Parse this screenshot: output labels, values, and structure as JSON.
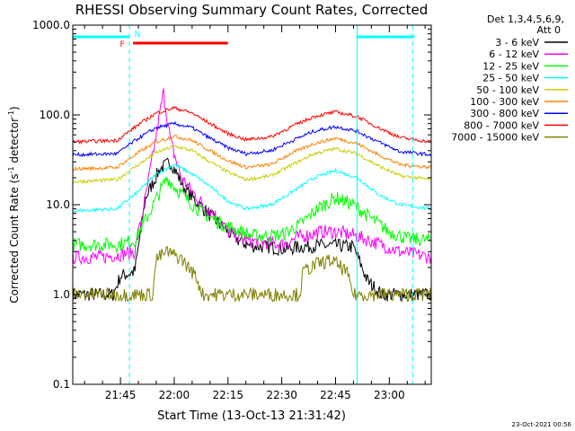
{
  "chart_data": {
    "type": "line",
    "title": "RHESSI Observing Summary Count Rates, Corrected",
    "xlabel": "Start Time (13-Oct-13 21:31:42)",
    "ylabel_main": "Corrected Count Rate (s",
    "ylabel_sup1": "-1",
    "ylabel_mid": " detector",
    "ylabel_sup2": "-1",
    "ylabel_end": ")",
    "yscale": "log",
    "ylim": [
      0.1,
      1000
    ],
    "xlim": [
      "21:31:42",
      "23:11:42"
    ],
    "y_ticks": [
      {
        "value": 0.1,
        "label": "0.1"
      },
      {
        "value": 1,
        "label": "1.0"
      },
      {
        "value": 10,
        "label": "10.0"
      },
      {
        "value": 100,
        "label": "100.0"
      },
      {
        "value": 1000,
        "label": "1000.0"
      }
    ],
    "x_ticks": [
      {
        "value": "21:45",
        "label": "21:45"
      },
      {
        "value": "22:00",
        "label": "22:00"
      },
      {
        "value": "22:15",
        "label": "22:15"
      },
      {
        "value": "22:30",
        "label": "22:30"
      },
      {
        "value": "22:45",
        "label": "22:45"
      },
      {
        "value": "23:00",
        "label": "23:00"
      }
    ],
    "legend_header_1": "Det 1,3,4,5,6,9,",
    "legend_header_2": "Att 0",
    "legend_position": "right",
    "series": [
      {
        "name": "3 - 6 keV",
        "color": "#000000",
        "values": [
          {
            "t": "21:31:42",
            "y": 1.0
          },
          {
            "t": "21:43",
            "y": 1.0
          },
          {
            "t": "21:45",
            "y": 1.6
          },
          {
            "t": "21:49",
            "y": 1.8
          },
          {
            "t": "21:52",
            "y": 12
          },
          {
            "t": "21:56",
            "y": 25
          },
          {
            "t": "21:59",
            "y": 30
          },
          {
            "t": "22:03",
            "y": 15
          },
          {
            "t": "22:07",
            "y": 10
          },
          {
            "t": "22:11",
            "y": 7
          },
          {
            "t": "22:15",
            "y": 5
          },
          {
            "t": "22:18",
            "y": 4
          },
          {
            "t": "22:21",
            "y": 3.5
          },
          {
            "t": "22:26",
            "y": 3.4
          },
          {
            "t": "22:31",
            "y": 3.2
          },
          {
            "t": "22:35",
            "y": 3.4
          },
          {
            "t": "22:40",
            "y": 3.5
          },
          {
            "t": "22:45",
            "y": 3.5
          },
          {
            "t": "22:50",
            "y": 3.4
          },
          {
            "t": "22:54",
            "y": 1.4
          },
          {
            "t": "22:58",
            "y": 1.0
          },
          {
            "t": "23:11:42",
            "y": 1.0
          }
        ]
      },
      {
        "name": "6 - 12 keV",
        "color": "#ff00ff",
        "values": [
          {
            "t": "21:31:42",
            "y": 2.6
          },
          {
            "t": "21:40",
            "y": 2.6
          },
          {
            "t": "21:45",
            "y": 2.8
          },
          {
            "t": "21:49",
            "y": 3.0
          },
          {
            "t": "21:52",
            "y": 12
          },
          {
            "t": "21:55",
            "y": 60
          },
          {
            "t": "21:57",
            "y": 180
          },
          {
            "t": "21:59",
            "y": 50
          },
          {
            "t": "22:02",
            "y": 20
          },
          {
            "t": "22:05",
            "y": 14
          },
          {
            "t": "22:08",
            "y": 10
          },
          {
            "t": "22:11",
            "y": 8
          },
          {
            "t": "22:15",
            "y": 5
          },
          {
            "t": "22:20",
            "y": 4
          },
          {
            "t": "22:30",
            "y": 3.6
          },
          {
            "t": "22:35",
            "y": 4.4
          },
          {
            "t": "22:41",
            "y": 5.0
          },
          {
            "t": "22:45",
            "y": 5.0
          },
          {
            "t": "22:50",
            "y": 4.6
          },
          {
            "t": "22:56",
            "y": 3.8
          },
          {
            "t": "23:03",
            "y": 3.0
          },
          {
            "t": "23:11:42",
            "y": 2.6
          }
        ]
      },
      {
        "name": "12 - 25 keV",
        "color": "#00ff00",
        "values": [
          {
            "t": "21:31:42",
            "y": 3.6
          },
          {
            "t": "21:44",
            "y": 3.6
          },
          {
            "t": "21:49",
            "y": 4.0
          },
          {
            "t": "21:53",
            "y": 8
          },
          {
            "t": "21:56",
            "y": 14
          },
          {
            "t": "21:58",
            "y": 20
          },
          {
            "t": "22:00",
            "y": 16
          },
          {
            "t": "22:04",
            "y": 11
          },
          {
            "t": "22:08",
            "y": 8
          },
          {
            "t": "22:12",
            "y": 6.5
          },
          {
            "t": "22:16",
            "y": 5.5
          },
          {
            "t": "22:22",
            "y": 4.5
          },
          {
            "t": "22:30",
            "y": 4.6
          },
          {
            "t": "22:35",
            "y": 6
          },
          {
            "t": "22:40",
            "y": 9
          },
          {
            "t": "22:45",
            "y": 12
          },
          {
            "t": "22:50",
            "y": 10
          },
          {
            "t": "22:55",
            "y": 7
          },
          {
            "t": "23:00",
            "y": 5
          },
          {
            "t": "23:05",
            "y": 4.2
          },
          {
            "t": "23:11:42",
            "y": 4.0
          }
        ]
      },
      {
        "name": "25 - 50 keV",
        "color": "#00ffff",
        "values": [
          {
            "t": "21:31:42",
            "y": 8.5
          },
          {
            "t": "21:44",
            "y": 9
          },
          {
            "t": "21:50",
            "y": 14
          },
          {
            "t": "21:55",
            "y": 22
          },
          {
            "t": "22:00",
            "y": 28
          },
          {
            "t": "22:05",
            "y": 22
          },
          {
            "t": "22:10",
            "y": 16
          },
          {
            "t": "22:15",
            "y": 11
          },
          {
            "t": "22:20",
            "y": 9
          },
          {
            "t": "22:27",
            "y": 10
          },
          {
            "t": "22:33",
            "y": 14
          },
          {
            "t": "22:39",
            "y": 20
          },
          {
            "t": "22:45",
            "y": 24
          },
          {
            "t": "22:51",
            "y": 20
          },
          {
            "t": "22:57",
            "y": 13
          },
          {
            "t": "23:03",
            "y": 10
          },
          {
            "t": "23:11:42",
            "y": 9
          }
        ]
      },
      {
        "name": "50 - 100 keV",
        "color": "#cccc00",
        "values": [
          {
            "t": "21:31:42",
            "y": 18
          },
          {
            "t": "21:44",
            "y": 19
          },
          {
            "t": "21:50",
            "y": 28
          },
          {
            "t": "21:55",
            "y": 38
          },
          {
            "t": "22:00",
            "y": 45
          },
          {
            "t": "22:05",
            "y": 40
          },
          {
            "t": "22:10",
            "y": 30
          },
          {
            "t": "22:15",
            "y": 23
          },
          {
            "t": "22:20",
            "y": 19
          },
          {
            "t": "22:27",
            "y": 21
          },
          {
            "t": "22:33",
            "y": 28
          },
          {
            "t": "22:39",
            "y": 37
          },
          {
            "t": "22:45",
            "y": 42
          },
          {
            "t": "22:51",
            "y": 37
          },
          {
            "t": "22:57",
            "y": 27
          },
          {
            "t": "23:03",
            "y": 21
          },
          {
            "t": "23:11:42",
            "y": 19
          }
        ]
      },
      {
        "name": "100 - 300 keV",
        "color": "#ff8000",
        "values": [
          {
            "t": "21:31:42",
            "y": 25
          },
          {
            "t": "21:44",
            "y": 26
          },
          {
            "t": "21:50",
            "y": 38
          },
          {
            "t": "21:55",
            "y": 50
          },
          {
            "t": "22:00",
            "y": 58
          },
          {
            "t": "22:05",
            "y": 52
          },
          {
            "t": "22:10",
            "y": 40
          },
          {
            "t": "22:15",
            "y": 31
          },
          {
            "t": "22:20",
            "y": 26
          },
          {
            "t": "22:27",
            "y": 28
          },
          {
            "t": "22:33",
            "y": 38
          },
          {
            "t": "22:39",
            "y": 48
          },
          {
            "t": "22:45",
            "y": 55
          },
          {
            "t": "22:51",
            "y": 48
          },
          {
            "t": "22:57",
            "y": 36
          },
          {
            "t": "23:03",
            "y": 28
          },
          {
            "t": "23:11:42",
            "y": 26
          }
        ]
      },
      {
        "name": "300 - 800 keV",
        "color": "#0000ff",
        "values": [
          {
            "t": "21:31:42",
            "y": 36
          },
          {
            "t": "21:44",
            "y": 37
          },
          {
            "t": "21:50",
            "y": 55
          },
          {
            "t": "21:55",
            "y": 72
          },
          {
            "t": "22:00",
            "y": 80
          },
          {
            "t": "22:05",
            "y": 72
          },
          {
            "t": "22:10",
            "y": 55
          },
          {
            "t": "22:15",
            "y": 43
          },
          {
            "t": "22:20",
            "y": 37
          },
          {
            "t": "22:27",
            "y": 40
          },
          {
            "t": "22:33",
            "y": 52
          },
          {
            "t": "22:39",
            "y": 66
          },
          {
            "t": "22:45",
            "y": 74
          },
          {
            "t": "22:51",
            "y": 66
          },
          {
            "t": "22:57",
            "y": 50
          },
          {
            "t": "23:03",
            "y": 39
          },
          {
            "t": "23:11:42",
            "y": 36
          }
        ]
      },
      {
        "name": "800 - 7000 keV",
        "color": "#ff0000",
        "values": [
          {
            "t": "21:31:42",
            "y": 50
          },
          {
            "t": "21:44",
            "y": 52
          },
          {
            "t": "21:50",
            "y": 78
          },
          {
            "t": "21:55",
            "y": 105
          },
          {
            "t": "22:00",
            "y": 120
          },
          {
            "t": "22:05",
            "y": 105
          },
          {
            "t": "22:10",
            "y": 80
          },
          {
            "t": "22:15",
            "y": 62
          },
          {
            "t": "22:20",
            "y": 53
          },
          {
            "t": "22:27",
            "y": 57
          },
          {
            "t": "22:33",
            "y": 75
          },
          {
            "t": "22:39",
            "y": 96
          },
          {
            "t": "22:45",
            "y": 108
          },
          {
            "t": "22:51",
            "y": 96
          },
          {
            "t": "22:57",
            "y": 72
          },
          {
            "t": "23:03",
            "y": 56
          },
          {
            "t": "23:11:42",
            "y": 50
          }
        ]
      },
      {
        "name": "7000 - 15000 keV",
        "color": "#808000",
        "values": [
          {
            "t": "21:31:42",
            "y": 1.0
          },
          {
            "t": "21:54",
            "y": 1.0
          },
          {
            "t": "21:55",
            "y": 2.5
          },
          {
            "t": "21:58",
            "y": 3.0
          },
          {
            "t": "22:02",
            "y": 2.5
          },
          {
            "t": "22:06",
            "y": 1.6
          },
          {
            "t": "22:08",
            "y": 1.0
          },
          {
            "t": "22:35",
            "y": 1.0
          },
          {
            "t": "22:36",
            "y": 1.8
          },
          {
            "t": "22:40",
            "y": 2.2
          },
          {
            "t": "22:44",
            "y": 2.4
          },
          {
            "t": "22:48",
            "y": 1.8
          },
          {
            "t": "22:50",
            "y": 1.0
          },
          {
            "t": "23:11:42",
            "y": 1.0
          }
        ]
      }
    ],
    "time_markers": [
      {
        "t": "21:31:42",
        "color": "#00ffff",
        "style": "solid"
      },
      {
        "t": "21:47:30",
        "color": "#00ffff",
        "style": "dashed"
      },
      {
        "t": "22:51:00",
        "color": "#00ffff",
        "style": "solid"
      },
      {
        "t": "23:06:30",
        "color": "#00ffff",
        "style": "dashed"
      }
    ],
    "flag_bars": [
      {
        "from": "21:31:42",
        "to": "21:47:30",
        "color": "#00ffff",
        "level": "top"
      },
      {
        "from": "22:51:00",
        "to": "23:07:00",
        "color": "#00ffff",
        "level": "top"
      },
      {
        "from": "21:48:30",
        "to": "22:15:00",
        "color": "#ff0000",
        "level": "second"
      }
    ],
    "annotations": [
      {
        "text": "N",
        "t": "21:48:00",
        "color": "#00ffff",
        "level": "top"
      },
      {
        "text": "F",
        "t": "21:45:30",
        "color": "#ff0000",
        "level": "second"
      }
    ]
  },
  "footer_date": "23-Oct-2021 00:56"
}
